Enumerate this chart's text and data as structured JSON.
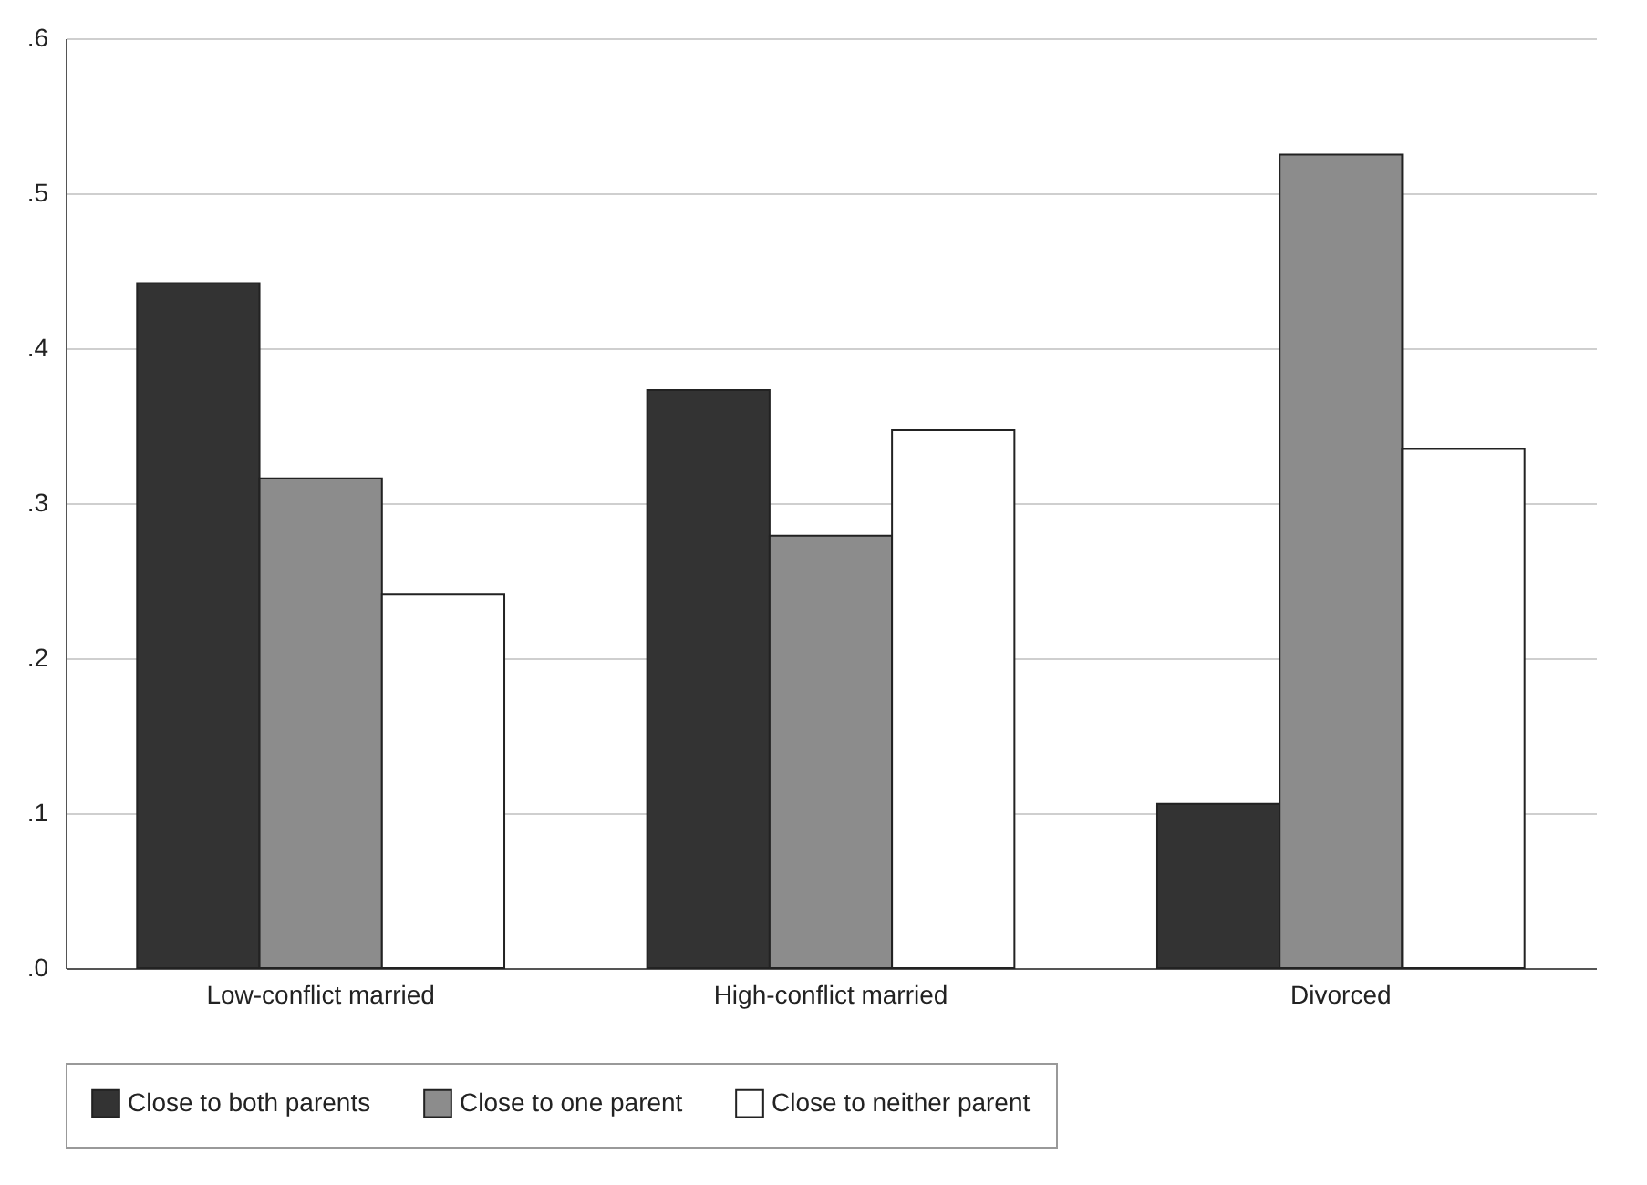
{
  "chart_data": {
    "type": "bar",
    "categories": [
      "Low-conflict married",
      "High-conflict married",
      "Divorced"
    ],
    "series": [
      {
        "name": "Close to both parents",
        "color": "#333333",
        "values": [
          0.442,
          0.373,
          0.106
        ]
      },
      {
        "name": "Close to one parent",
        "color": "#8c8c8c",
        "values": [
          0.316,
          0.279,
          0.525
        ]
      },
      {
        "name": "Close to neither parent",
        "color": "#ffffff",
        "values": [
          0.241,
          0.347,
          0.335
        ]
      }
    ],
    "ylim": [
      0,
      0.6
    ],
    "yticks": [
      {
        "value": 0,
        "label": ".0"
      },
      {
        "value": 0.1,
        "label": ".1"
      },
      {
        "value": 0.2,
        "label": ".2"
      },
      {
        "value": 0.3,
        "label": ".3"
      },
      {
        "value": 0.4,
        "label": ".4"
      },
      {
        "value": 0.5,
        "label": ".5"
      },
      {
        "value": 0.6,
        "label": ".6"
      }
    ],
    "grid": "y",
    "legend": "bottom"
  }
}
